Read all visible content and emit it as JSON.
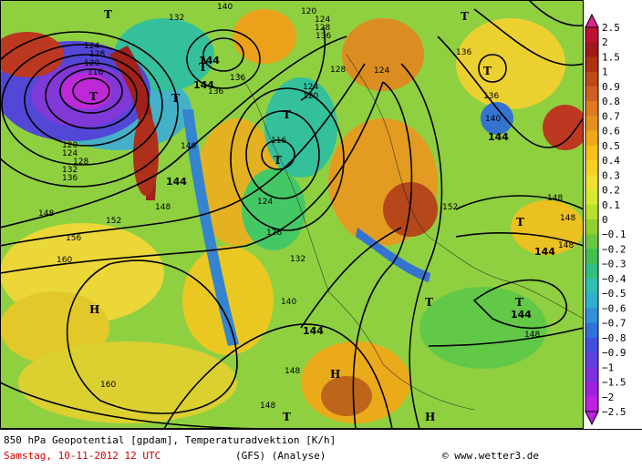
{
  "map": {
    "contour_labels": [
      {
        "text": "132"
      },
      {
        "text": "140"
      },
      {
        "text": "120"
      },
      {
        "text": "124"
      },
      {
        "text": "128"
      },
      {
        "text": "124"
      },
      {
        "text": "120"
      },
      {
        "text": "116"
      },
      {
        "text": "128"
      },
      {
        "text": "136"
      },
      {
        "text": "144"
      },
      {
        "text": "136"
      },
      {
        "text": "124"
      },
      {
        "text": "120"
      },
      {
        "text": "128"
      },
      {
        "text": "136"
      },
      {
        "text": "136"
      },
      {
        "text": "140"
      },
      {
        "text": "116"
      },
      {
        "text": "124"
      },
      {
        "text": "144"
      },
      {
        "text": "148"
      },
      {
        "text": "148"
      },
      {
        "text": "152"
      },
      {
        "text": "156"
      },
      {
        "text": "160"
      },
      {
        "text": "152"
      },
      {
        "text": "148"
      },
      {
        "text": "140"
      },
      {
        "text": "132"
      },
      {
        "text": "128"
      },
      {
        "text": "124"
      },
      {
        "text": "144"
      },
      {
        "text": "148"
      },
      {
        "text": "160"
      },
      {
        "text": "148"
      },
      {
        "text": "148"
      },
      {
        "text": "144"
      },
      {
        "text": "148"
      },
      {
        "text": "148"
      },
      {
        "text": "144"
      },
      {
        "text": "144"
      },
      {
        "text": "136"
      },
      {
        "text": "140"
      },
      {
        "text": "144"
      },
      {
        "text": "120"
      },
      {
        "text": "124"
      },
      {
        "text": "128"
      },
      {
        "text": "132"
      },
      {
        "text": "136"
      }
    ],
    "pressure_centers": [
      {
        "text": "T"
      },
      {
        "text": "T"
      },
      {
        "text": "T"
      },
      {
        "text": "T"
      },
      {
        "text": "T"
      },
      {
        "text": "T"
      },
      {
        "text": "T"
      },
      {
        "text": "T"
      },
      {
        "text": "T"
      },
      {
        "text": "T"
      },
      {
        "text": "H"
      },
      {
        "text": "H"
      },
      {
        "text": "H"
      },
      {
        "text": "T"
      },
      {
        "text": "T"
      }
    ]
  },
  "scale": {
    "levels": [
      "2.5",
      "2",
      "1.5",
      "1",
      "0.9",
      "0.8",
      "0.7",
      "0.6",
      "0.5",
      "0.4",
      "0.3",
      "0.2",
      "0.1",
      "0",
      "−0.1",
      "−0.2",
      "−0.3",
      "−0.4",
      "−0.5",
      "−0.6",
      "−0.7",
      "−0.8",
      "−0.9",
      "−1",
      "−1.5",
      "−2",
      "−2.5"
    ],
    "colors": [
      "#e0208c",
      "#c01030",
      "#a01818",
      "#b03010",
      "#c04818",
      "#d06020",
      "#e07a20",
      "#e8901c",
      "#f0a818",
      "#f8c018",
      "#f8d020",
      "#f0e030",
      "#d8e830",
      "#b8e028",
      "#90d030",
      "#68c840",
      "#40c050",
      "#30c080",
      "#30c0b0",
      "#30b0d0",
      "#3090d8",
      "#3070d8",
      "#4050e0",
      "#6040e0",
      "#8030e0",
      "#a020e0",
      "#c020e0"
    ]
  },
  "footer": {
    "title": "850 hPa Geopotential [gpdam], Temperaturadvektion [K/h]",
    "date": "Samstag, 10-11-2012  12 UTC",
    "model": "(GFS)  (Analyse)",
    "copyright": "© www.wetter3.de"
  }
}
